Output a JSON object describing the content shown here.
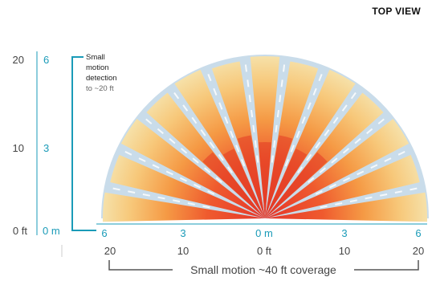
{
  "view_title": "TOP VIEW",
  "left_scale": {
    "feet": [
      "20",
      "10",
      "0 ft"
    ],
    "meters": [
      "6",
      "3",
      "0 m"
    ]
  },
  "bottom_scale": {
    "meters": [
      "6",
      "3",
      "0 m",
      "3",
      "6"
    ],
    "feet": [
      "20",
      "10",
      "0 ft",
      "10",
      "20"
    ]
  },
  "callout": {
    "line1": "Small",
    "line2": "motion",
    "line3": "detection",
    "line4": "to ~20 ft"
  },
  "coverage_label": "Small motion ~40 ft coverage",
  "colors": {
    "teal": "#1a9bb8",
    "gray": "#555555",
    "zone_outer": "#f3d98a",
    "zone_mid": "#f08a3c",
    "zone_inner": "#e23a24",
    "field_bg": "#c9dcea",
    "dash": "#ffffff"
  }
}
